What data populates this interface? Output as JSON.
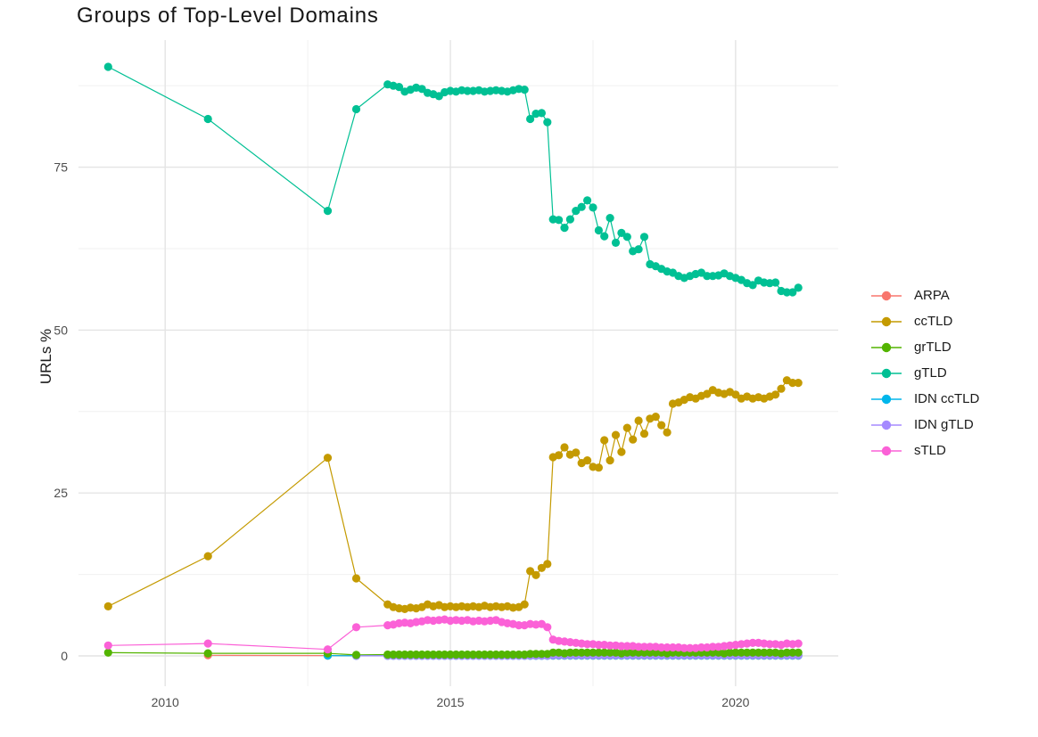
{
  "chart_data": {
    "type": "line",
    "title": "Groups of Top-Level Domains",
    "xlabel": "",
    "ylabel": "URLs %",
    "legend_position": "right",
    "grid": "major+minor",
    "x_ticks": {
      "values": [
        2010,
        2015,
        2020
      ],
      "labels": [
        "2010",
        "2015",
        "2020"
      ]
    },
    "x_minor_ticks": [
      2012.5,
      2017.5
    ],
    "y_ticks": {
      "values": [
        0,
        25,
        50,
        75
      ],
      "labels": [
        "0",
        "25",
        "50",
        "75"
      ]
    },
    "y_minor_ticks": [
      12.5,
      37.5,
      62.5,
      87.5
    ],
    "xlim": [
      2008.48,
      2021.8
    ],
    "ylim": [
      -4.65,
      94.5
    ],
    "x": [
      2009.0,
      2010.75,
      2012.85,
      2013.35,
      2013.9,
      2014.0,
      2014.1,
      2014.2,
      2014.3,
      2014.4,
      2014.5,
      2014.6,
      2014.7,
      2014.8,
      2014.9,
      2015.0,
      2015.1,
      2015.2,
      2015.3,
      2015.4,
      2015.5,
      2015.6,
      2015.7,
      2015.8,
      2015.9,
      2016.0,
      2016.1,
      2016.2,
      2016.3,
      2016.4,
      2016.5,
      2016.6,
      2016.7,
      2016.8,
      2016.9,
      2017.0,
      2017.1,
      2017.2,
      2017.3,
      2017.4,
      2017.5,
      2017.6,
      2017.7,
      2017.8,
      2017.9,
      2018.0,
      2018.1,
      2018.2,
      2018.3,
      2018.4,
      2018.5,
      2018.6,
      2018.7,
      2018.8,
      2018.9,
      2019.0,
      2019.1,
      2019.2,
      2019.3,
      2019.4,
      2019.5,
      2019.6,
      2019.7,
      2019.8,
      2019.9,
      2020.0,
      2020.1,
      2020.2,
      2020.3,
      2020.4,
      2020.5,
      2020.6,
      2020.7,
      2020.8,
      2020.9,
      2021.0,
      2021.1
    ],
    "series": [
      {
        "name": "ARPA",
        "color": "#F8766D",
        "values": [
          null,
          0.1,
          0.05,
          0.05,
          0.05,
          0.05,
          0.05,
          0.05,
          0.05,
          0.05,
          0.05,
          0.05,
          0.05,
          0.05,
          0.05,
          0.05,
          0.05,
          0.05,
          0.05,
          0.05,
          0.05,
          0.05,
          0.05,
          0.05,
          0.05,
          0.05,
          0.05,
          0.05,
          0.05,
          0.05,
          0.05,
          0.05,
          0.05,
          0.05,
          0.05,
          0.05,
          0.05,
          0.05,
          0.05,
          0.05,
          0.05,
          0.05,
          0.05,
          0.05,
          0.05,
          0.05,
          0.05,
          0.05,
          0.05,
          0.05,
          0.05,
          0.05,
          0.05,
          0.05,
          0.05,
          0.05,
          0.05,
          0.05,
          0.05,
          0.05,
          0.05,
          0.05,
          0.05,
          0.05,
          0.05,
          0.05,
          0.05,
          0.05,
          0.05,
          0.05,
          0.05,
          0.05,
          0.05,
          0.05,
          0.05,
          0.05,
          0.05
        ]
      },
      {
        "name": "ccTLD",
        "color": "#C49A00",
        "values": [
          7.6,
          15.3,
          30.4,
          11.9,
          7.9,
          7.5,
          7.3,
          7.2,
          7.4,
          7.3,
          7.5,
          7.9,
          7.6,
          7.8,
          7.5,
          7.6,
          7.5,
          7.6,
          7.5,
          7.6,
          7.5,
          7.7,
          7.5,
          7.6,
          7.5,
          7.6,
          7.4,
          7.5,
          7.9,
          13.0,
          12.4,
          13.5,
          14.1,
          30.5,
          30.8,
          32.0,
          30.9,
          31.2,
          29.6,
          30.0,
          29.0,
          28.9,
          33.1,
          30.0,
          33.9,
          31.3,
          35.0,
          33.2,
          36.1,
          34.1,
          36.4,
          36.7,
          35.4,
          34.3,
          38.7,
          38.9,
          39.3,
          39.7,
          39.5,
          39.9,
          40.2,
          40.8,
          40.4,
          40.2,
          40.5,
          40.1,
          39.5,
          39.8,
          39.5,
          39.7,
          39.5,
          39.8,
          40.1,
          41.0,
          42.3,
          41.9,
          41.9
        ]
      },
      {
        "name": "grTLD",
        "color": "#53B400",
        "values": [
          0.5,
          0.4,
          0.4,
          0.15,
          0.2,
          0.2,
          0.2,
          0.2,
          0.2,
          0.2,
          0.2,
          0.2,
          0.2,
          0.2,
          0.2,
          0.2,
          0.2,
          0.2,
          0.2,
          0.2,
          0.2,
          0.2,
          0.2,
          0.2,
          0.2,
          0.2,
          0.2,
          0.2,
          0.2,
          0.3,
          0.3,
          0.3,
          0.3,
          0.5,
          0.5,
          0.4,
          0.5,
          0.5,
          0.5,
          0.5,
          0.5,
          0.5,
          0.5,
          0.5,
          0.5,
          0.4,
          0.5,
          0.5,
          0.5,
          0.5,
          0.5,
          0.5,
          0.5,
          0.4,
          0.5,
          0.5,
          0.5,
          0.5,
          0.5,
          0.5,
          0.5,
          0.5,
          0.5,
          0.4,
          0.5,
          0.5,
          0.5,
          0.5,
          0.5,
          0.5,
          0.5,
          0.5,
          0.5,
          0.4,
          0.5,
          0.5,
          0.5
        ]
      },
      {
        "name": "gTLD",
        "color": "#00C094",
        "values": [
          90.4,
          82.4,
          68.3,
          83.9,
          87.7,
          87.5,
          87.3,
          86.6,
          86.9,
          87.2,
          87.0,
          86.4,
          86.2,
          85.9,
          86.5,
          86.7,
          86.6,
          86.8,
          86.7,
          86.7,
          86.8,
          86.6,
          86.7,
          86.8,
          86.7,
          86.6,
          86.8,
          87.0,
          86.9,
          82.4,
          83.2,
          83.3,
          81.9,
          67.0,
          66.9,
          65.7,
          67.0,
          68.3,
          68.9,
          69.9,
          68.8,
          65.3,
          64.4,
          67.2,
          63.4,
          64.9,
          64.3,
          62.1,
          62.4,
          64.3,
          60.1,
          59.8,
          59.4,
          59.0,
          58.8,
          58.3,
          58.0,
          58.3,
          58.6,
          58.8,
          58.3,
          58.3,
          58.4,
          58.7,
          58.3,
          58.0,
          57.7,
          57.2,
          56.9,
          57.6,
          57.3,
          57.2,
          57.3,
          56.0,
          55.8,
          55.8,
          56.5
        ]
      },
      {
        "name": "IDN ccTLD",
        "color": "#00B6EB",
        "values": [
          null,
          null,
          0.05,
          0.02,
          0.02,
          0.02,
          0.02,
          0.02,
          0.02,
          0.02,
          0.02,
          0.02,
          0.02,
          0.02,
          0.02,
          0.02,
          0.02,
          0.02,
          0.02,
          0.02,
          0.02,
          0.02,
          0.02,
          0.02,
          0.02,
          0.02,
          0.02,
          0.02,
          0.02,
          0.02,
          0.02,
          0.02,
          0.02,
          0.05,
          0.05,
          0.05,
          0.05,
          0.05,
          0.05,
          0.05,
          0.05,
          0.05,
          0.05,
          0.05,
          0.05,
          0.05,
          0.05,
          0.05,
          0.05,
          0.05,
          0.05,
          0.05,
          0.05,
          0.05,
          0.05,
          0.05,
          0.05,
          0.05,
          0.05,
          0.05,
          0.05,
          0.05,
          0.05,
          0.05,
          0.05,
          0.05,
          0.05,
          0.05,
          0.05,
          0.05,
          0.05,
          0.05,
          0.05,
          0.05,
          0.05,
          0.05,
          0.05
        ]
      },
      {
        "name": "IDN gTLD",
        "color": "#A58AFF",
        "values": [
          null,
          null,
          null,
          0.02,
          0.02,
          0.02,
          0.02,
          0.02,
          0.02,
          0.02,
          0.02,
          0.02,
          0.02,
          0.02,
          0.02,
          0.02,
          0.02,
          0.02,
          0.02,
          0.02,
          0.02,
          0.02,
          0.02,
          0.02,
          0.02,
          0.02,
          0.02,
          0.02,
          0.02,
          0.03,
          0.03,
          0.03,
          0.03,
          0.1,
          0.1,
          0.1,
          0.1,
          0.1,
          0.1,
          0.1,
          0.1,
          0.1,
          0.1,
          0.1,
          0.1,
          0.1,
          0.1,
          0.1,
          0.1,
          0.1,
          0.1,
          0.1,
          0.1,
          0.1,
          0.1,
          0.1,
          0.1,
          0.1,
          0.1,
          0.1,
          0.1,
          0.1,
          0.1,
          0.1,
          0.1,
          0.1,
          0.1,
          0.1,
          0.1,
          0.1,
          0.1,
          0.1,
          0.1,
          0.1,
          0.1,
          0.1,
          0.1
        ]
      },
      {
        "name": "sTLD",
        "color": "#FB61D7",
        "values": [
          1.6,
          1.9,
          1.0,
          4.4,
          4.7,
          4.8,
          5.0,
          5.1,
          5.0,
          5.2,
          5.3,
          5.5,
          5.4,
          5.5,
          5.6,
          5.4,
          5.5,
          5.4,
          5.5,
          5.3,
          5.4,
          5.3,
          5.4,
          5.5,
          5.2,
          5.0,
          4.9,
          4.7,
          4.7,
          4.9,
          4.8,
          4.9,
          4.4,
          2.5,
          2.3,
          2.2,
          2.1,
          2.0,
          1.9,
          1.8,
          1.8,
          1.7,
          1.7,
          1.6,
          1.6,
          1.5,
          1.5,
          1.5,
          1.4,
          1.4,
          1.4,
          1.4,
          1.3,
          1.3,
          1.3,
          1.3,
          1.2,
          1.2,
          1.2,
          1.3,
          1.3,
          1.4,
          1.4,
          1.5,
          1.6,
          1.7,
          1.8,
          1.9,
          2.0,
          2.0,
          1.9,
          1.8,
          1.8,
          1.7,
          1.9,
          1.8,
          1.9
        ]
      }
    ]
  }
}
